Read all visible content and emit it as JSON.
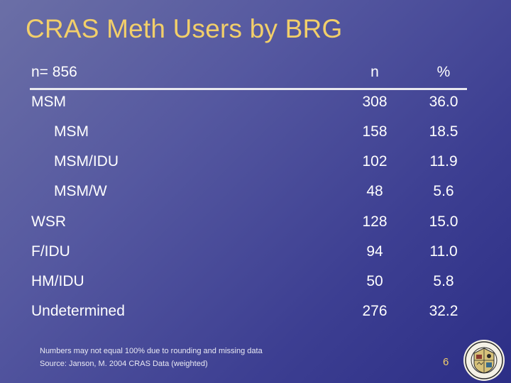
{
  "title": "CRAS Meth Users by BRG",
  "table": {
    "header": {
      "label": "n= 856",
      "n": "n",
      "pct": "%"
    },
    "rows": [
      {
        "label": "MSM",
        "n": "308",
        "pct": "36.0",
        "sub": false
      },
      {
        "label": "MSM",
        "n": "158",
        "pct": "18.5",
        "sub": true
      },
      {
        "label": "MSM/IDU",
        "n": "102",
        "pct": "11.9",
        "sub": true
      },
      {
        "label": "MSM/W",
        "n": "48",
        "pct": "5.6",
        "sub": true
      },
      {
        "label": "WSR",
        "n": "128",
        "pct": "15.0",
        "sub": false
      },
      {
        "label": "F/IDU",
        "n": "94",
        "pct": "11.0",
        "sub": false
      },
      {
        "label": "HM/IDU",
        "n": "50",
        "pct": "5.8",
        "sub": false
      },
      {
        "label": "Undetermined",
        "n": "276",
        "pct": "32.2",
        "sub": false
      }
    ]
  },
  "footnotes": {
    "line1": "Numbers may not equal 100% due to rounding and missing data",
    "line2": "Source: Janson, M. 2004 CRAS Data (weighted)"
  },
  "page_number": "6",
  "colors": {
    "title": "#f2cf6a",
    "text": "#ffffff",
    "background": "#4a4d98"
  }
}
